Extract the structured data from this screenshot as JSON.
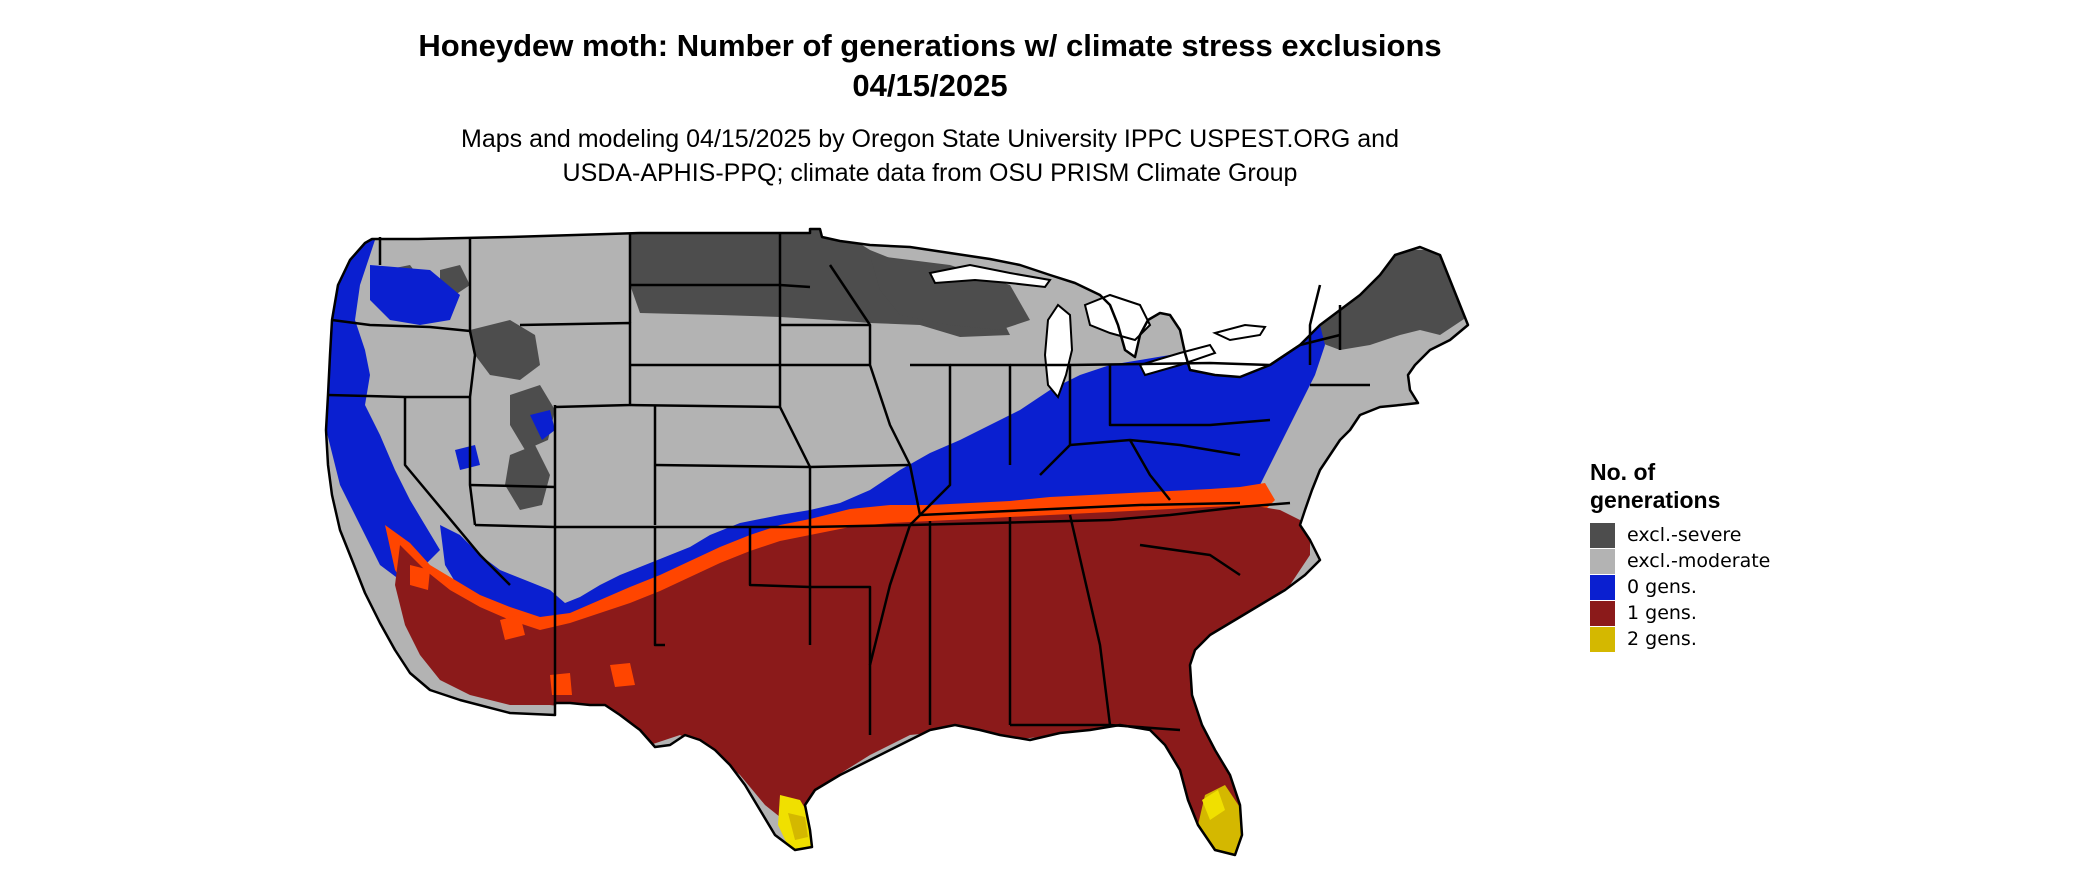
{
  "title": {
    "line1": "Honeydew moth: Number of generations w/ climate stress exclusions",
    "line2": "04/15/2025"
  },
  "subtitle": {
    "line1": "Maps and modeling 04/15/2025 by Oregon State University IPPC USPEST.ORG and",
    "line2": "USDA-APHIS-PPQ; climate data from OSU PRISM Climate Group"
  },
  "legend": {
    "title_line1": "No. of",
    "title_line2": "generations",
    "items": [
      {
        "label": "excl.-severe",
        "color": "#4d4d4d"
      },
      {
        "label": "excl.-moderate",
        "color": "#b3b3b3"
      },
      {
        "label": "0 gens.",
        "color": "#0a1fd0"
      },
      {
        "label": "1 gens.",
        "color": "#8b1a1a"
      },
      {
        "label": "2 gens.",
        "color": "#d4b800"
      }
    ]
  },
  "map": {
    "region": "Contiguous United States",
    "colors": {
      "excl_severe": "#4d4d4d",
      "excl_moderate": "#b3b3b3",
      "zero_gens": "#0a1fd0",
      "one_gens": "#8b1a1a",
      "two_gens": "#d4b800",
      "transition": "#ff4500",
      "bright_yellow": "#f0e000",
      "state_border": "#000000",
      "water": "#ffffff"
    }
  }
}
